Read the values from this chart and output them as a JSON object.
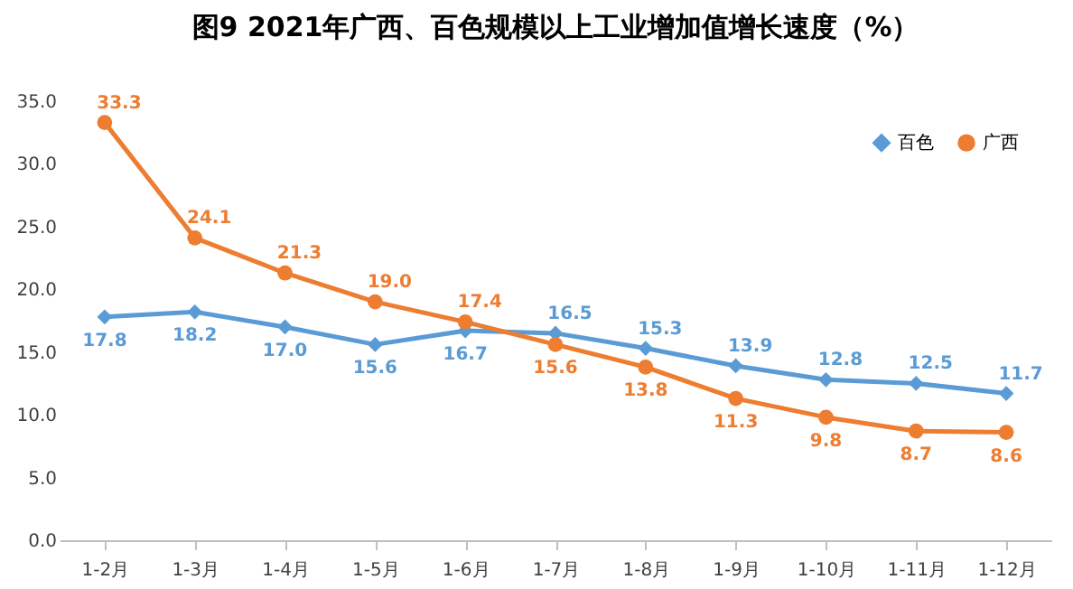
{
  "chart_data": {
    "type": "line",
    "title": "图9  2021年广西、百色规模以上工业增加值增长速度（%）",
    "categories": [
      "1-2月",
      "1-3月",
      "1-4月",
      "1-5月",
      "1-6月",
      "1-7月",
      "1-8月",
      "1-9月",
      "1-10月",
      "1-11月",
      "1-12月"
    ],
    "series": [
      {
        "name": "百色",
        "color": "#5b9bd5",
        "marker": "diamond",
        "values": [
          17.8,
          18.2,
          17.0,
          15.6,
          16.7,
          16.5,
          15.3,
          13.9,
          12.8,
          12.5,
          11.7
        ],
        "value_labels": [
          "17.8",
          "18.2",
          "17.0",
          "15.6",
          "16.7",
          "16.5",
          "15.3",
          "13.9",
          "12.8",
          "12.5",
          "11.7"
        ]
      },
      {
        "name": "广西",
        "color": "#ed7d31",
        "marker": "circle",
        "values": [
          33.3,
          24.1,
          21.3,
          19.0,
          17.4,
          15.6,
          13.8,
          11.3,
          9.8,
          8.7,
          8.6
        ],
        "value_labels": [
          "33.3",
          "24.1",
          "21.3",
          "19.0",
          "17.4",
          "15.6",
          "13.8",
          "11.3",
          "9.8",
          "8.7",
          "8.6"
        ]
      }
    ],
    "ylim": [
      0,
      35
    ],
    "yticks": [
      {
        "value": 0,
        "label": "0.0"
      },
      {
        "value": 5,
        "label": "5.0"
      },
      {
        "value": 10,
        "label": "10.0"
      },
      {
        "value": 15,
        "label": "15.0"
      },
      {
        "value": 20,
        "label": "20.0"
      },
      {
        "value": 25,
        "label": "25.0"
      },
      {
        "value": 30,
        "label": "30.0"
      },
      {
        "value": 35,
        "label": "35.0"
      }
    ],
    "grid": false,
    "legend": "top right"
  }
}
